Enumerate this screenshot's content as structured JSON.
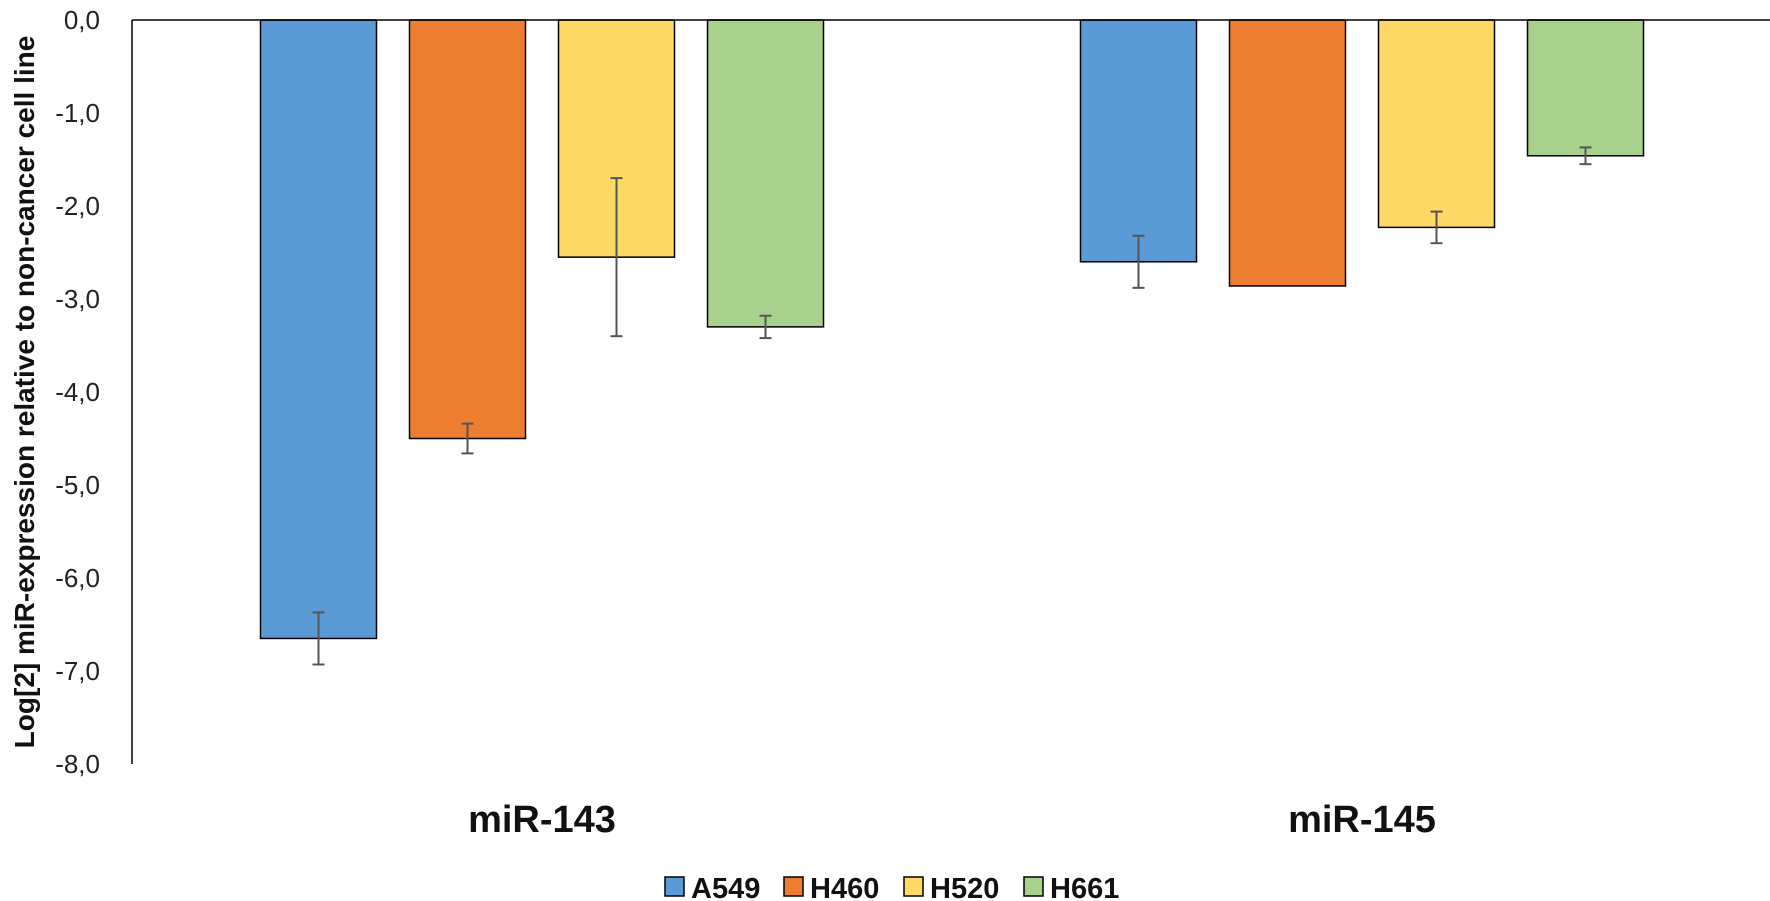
{
  "chart_data": {
    "type": "bar",
    "title": "",
    "xlabel": "",
    "ylabel": "Log[2] miR-expression relative to non-cancer cell  line",
    "ylim": [
      -8,
      0
    ],
    "yticks": [
      "0,0",
      "-1,0",
      "-2,0",
      "-3,0",
      "-4,0",
      "-5,0",
      "-6,0",
      "-7,0",
      "-8,0"
    ],
    "categories": [
      "miR-143",
      "miR-145"
    ],
    "series": [
      {
        "name": "A549",
        "color": "#5B9BD5",
        "values": [
          -6.65,
          -2.6
        ],
        "errors": [
          0.28,
          0.28
        ]
      },
      {
        "name": "H460",
        "color": "#ED7D31",
        "values": [
          -4.5,
          -2.86
        ],
        "errors": [
          0.16,
          0.0
        ]
      },
      {
        "name": "H520",
        "color": "#FFD966",
        "values": [
          -2.55,
          -2.23
        ],
        "errors": [
          0.85,
          0.17
        ]
      },
      {
        "name": "H661",
        "color": "#A9D18E",
        "values": [
          -3.3,
          -1.46
        ],
        "errors": [
          0.12,
          0.09
        ]
      }
    ],
    "legend_position": "bottom",
    "grid": false
  }
}
